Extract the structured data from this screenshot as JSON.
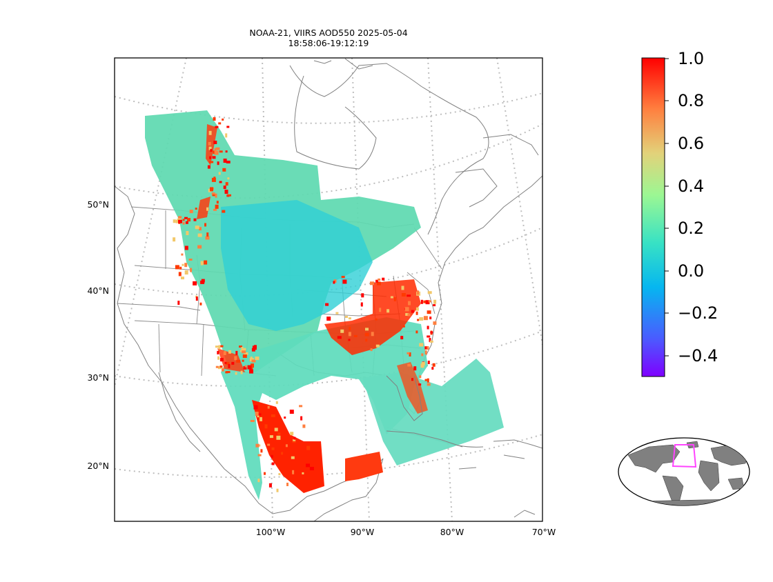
{
  "title": {
    "line1": "NOAA-21, VIIRS AOD550 2025-05-04",
    "line2": "18:58:06-19:12:19"
  },
  "map": {
    "product": "VIIRS AOD550",
    "lat_labels": [
      "50°N",
      "40°N",
      "30°N",
      "20°N"
    ],
    "lon_labels": [
      "100°W",
      "90°W",
      "80°W",
      "70°W"
    ],
    "graticule": "dotted",
    "inset": "world-globe-overview-with-magenta-region-box"
  },
  "colorbar": {
    "colormap": "rainbow",
    "tick_labels": [
      "1.0",
      "0.8",
      "0.6",
      "0.4",
      "0.2",
      "0.0",
      "−0.2",
      "−0.4"
    ],
    "colors": [
      "#ff0000",
      "#ff7f3f",
      "#f2c86a",
      "#9cf793",
      "#38e2c4",
      "#06b6f0",
      "#3a74ff",
      "#7f00ff"
    ]
  },
  "colors": {
    "coast": "#808080",
    "grid": "#bdbdbd",
    "aod_low": "#3fe0c2",
    "aod_mid": "#5fd9b0",
    "aod_high": "#ff1a00",
    "inset_land": "#808080",
    "inset_box": "#ff44ff"
  }
}
